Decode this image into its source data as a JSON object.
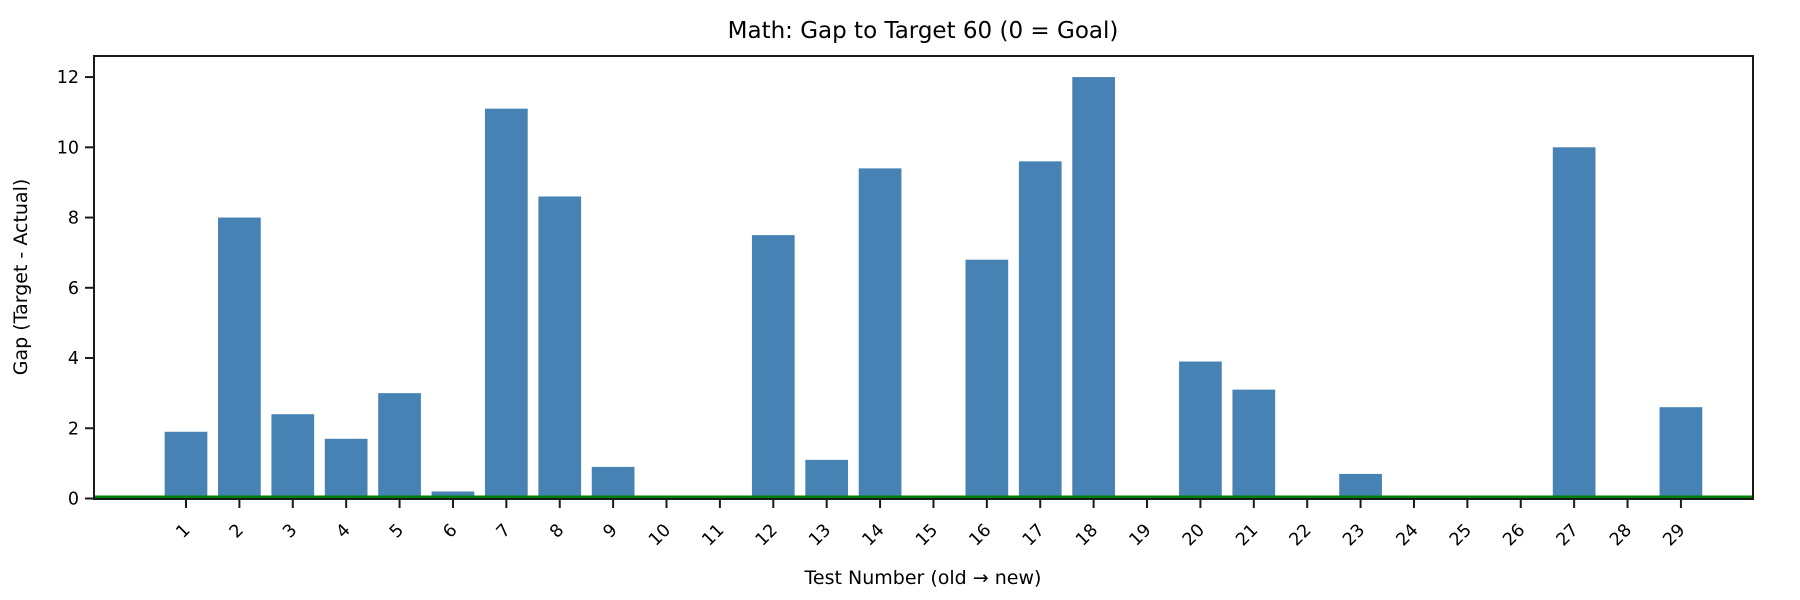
{
  "figure": {
    "title": "Math: Gap to Target 60 (0 = Goal)"
  },
  "chart_data": {
    "type": "bar",
    "title": "Math: Gap to Target 60 (0 = Goal)",
    "xlabel": "Test Number (old → new)",
    "ylabel": "Gap (Target - Actual)",
    "categories": [
      "1",
      "2",
      "3",
      "4",
      "5",
      "6",
      "7",
      "8",
      "9",
      "10",
      "11",
      "12",
      "13",
      "14",
      "15",
      "16",
      "17",
      "18",
      "19",
      "20",
      "21",
      "22",
      "23",
      "24",
      "25",
      "26",
      "27",
      "28",
      "29"
    ],
    "values": [
      1.9,
      8.0,
      2.4,
      1.7,
      3.0,
      0.2,
      11.1,
      8.6,
      0.9,
      0,
      0,
      7.5,
      1.1,
      9.4,
      0,
      6.8,
      9.6,
      12.0,
      0,
      3.9,
      3.1,
      0,
      0.7,
      0,
      0,
      0,
      10.0,
      0,
      2.6
    ],
    "yticks": [
      0,
      2,
      4,
      6,
      8,
      10,
      12
    ],
    "ylim": [
      0,
      12.6
    ],
    "grid": false,
    "legend": "none",
    "x_tick_rotation": 45,
    "bar_color": "#4682B4",
    "axis_color": "#1a1a1a",
    "goal_line": {
      "y": 0,
      "color": "#008000",
      "meaning": "0 = Goal"
    }
  }
}
